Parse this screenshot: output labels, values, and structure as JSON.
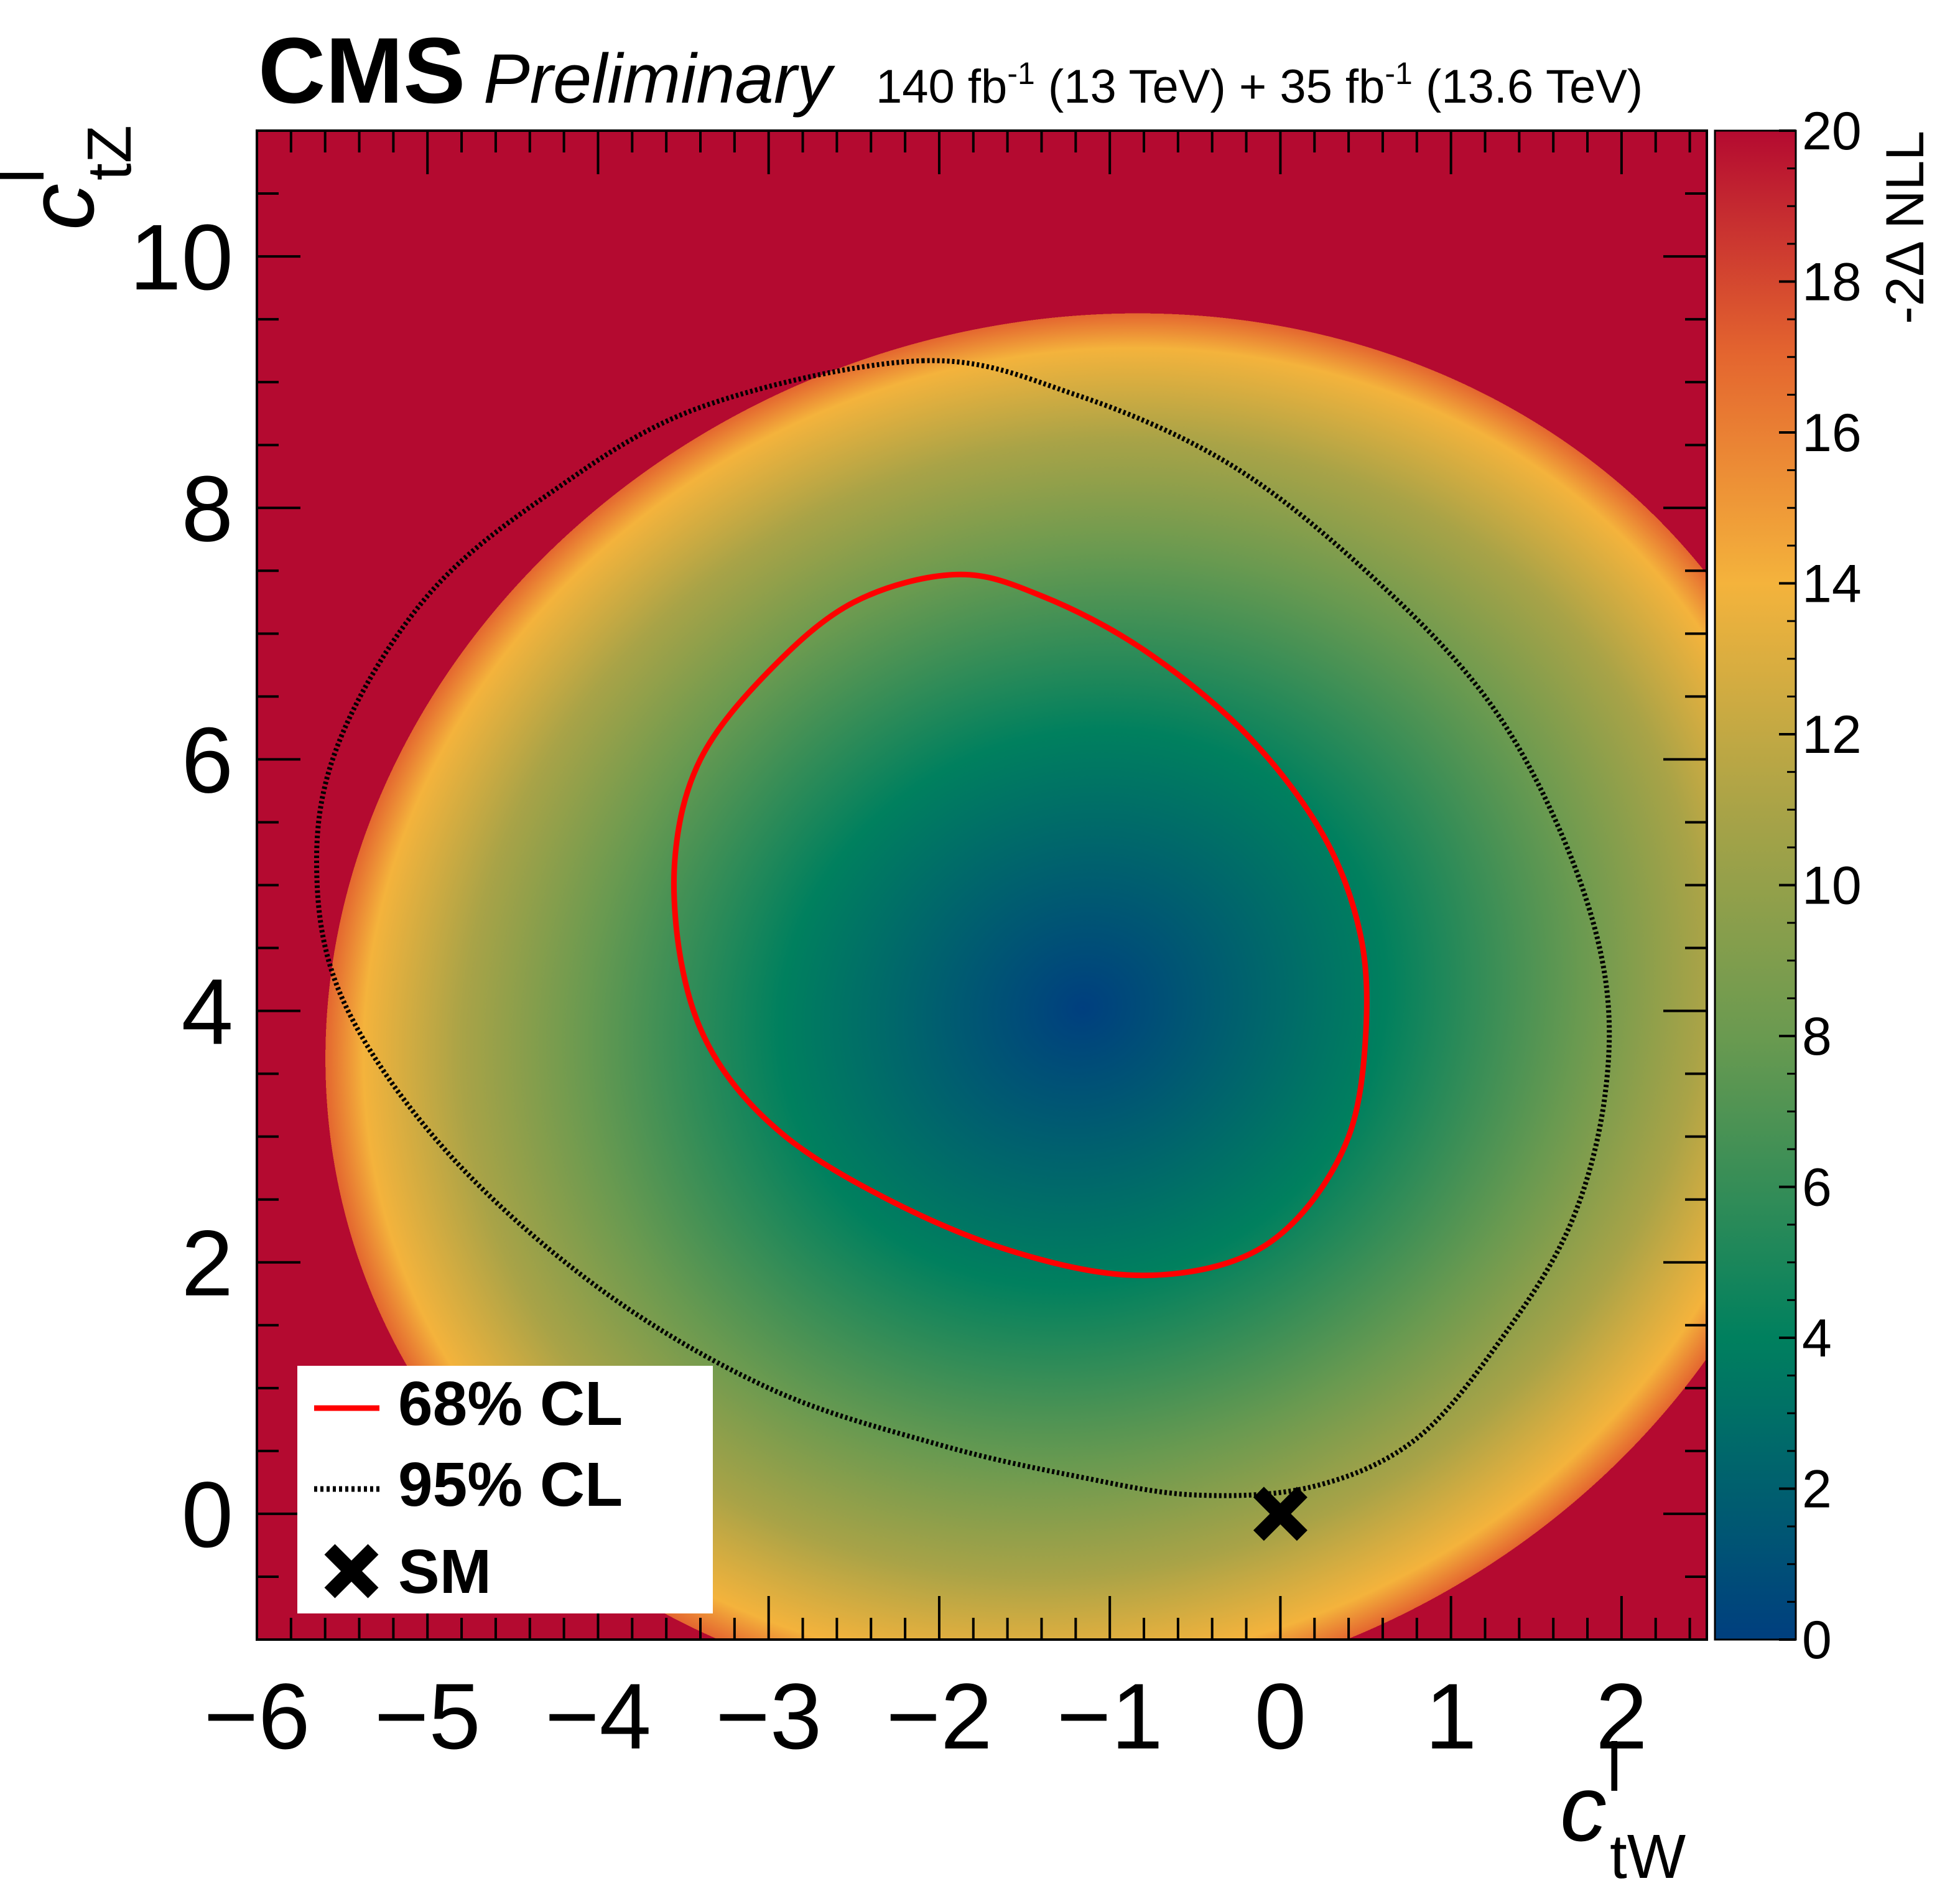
{
  "header": {
    "experiment": "CMS",
    "status": "Preliminary",
    "lumi_label_a": "140 fb",
    "lumi_exp_a": "-1",
    "lumi_label_b": " (13 TeV) + 35 fb",
    "lumi_exp_b": "-1",
    "lumi_label_c": " (13.6 TeV)"
  },
  "chart_data": {
    "type": "heatmap",
    "xlabel": {
      "base": "c",
      "sup": "l",
      "sub": "tW"
    },
    "ylabel": {
      "base": "c",
      "sup": "l",
      "sub": "tZ"
    },
    "xlim": [
      -6.0,
      2.5
    ],
    "ylim": [
      -1.0,
      11.0
    ],
    "x_ticks": [
      "−6",
      "−5",
      "−4",
      "−3",
      "−2",
      "−1",
      "0",
      "1",
      "2"
    ],
    "x_tick_values": [
      -6,
      -5,
      -4,
      -3,
      -2,
      -1,
      0,
      1,
      2
    ],
    "y_ticks": [
      "0",
      "2",
      "4",
      "6",
      "8",
      "10"
    ],
    "y_tick_values": [
      0,
      2,
      4,
      6,
      8,
      10
    ],
    "colorbar": {
      "label": "-2Δ NLL",
      "range": [
        0,
        20
      ],
      "ticks": [
        "0",
        "2",
        "4",
        "6",
        "8",
        "10",
        "12",
        "14",
        "16",
        "18",
        "20"
      ],
      "tick_values": [
        0,
        2,
        4,
        6,
        8,
        10,
        12,
        14,
        16,
        18,
        20
      ],
      "colors": [
        "#003f7f",
        "#00805e",
        "#6a9a50",
        "#a9a347",
        "#f4b33c",
        "#e4662f",
        "#b40a30"
      ]
    },
    "best_fit": [
      -1.2,
      4.7
    ],
    "contours": [
      {
        "name": "68% CL",
        "color": "#ff0000",
        "style": "solid",
        "points": [
          [
            -1.9,
            7.47
          ],
          [
            -1.4,
            7.3
          ],
          [
            -0.8,
            6.87
          ],
          [
            -0.2,
            6.2
          ],
          [
            0.25,
            5.4
          ],
          [
            0.47,
            4.6
          ],
          [
            0.5,
            3.8
          ],
          [
            0.4,
            3.0
          ],
          [
            0.1,
            2.35
          ],
          [
            -0.3,
            2.0
          ],
          [
            -0.9,
            1.9
          ],
          [
            -1.6,
            2.1
          ],
          [
            -2.3,
            2.5
          ],
          [
            -2.9,
            3.0
          ],
          [
            -3.3,
            3.6
          ],
          [
            -3.5,
            4.3
          ],
          [
            -3.55,
            5.2
          ],
          [
            -3.4,
            6.0
          ],
          [
            -3.0,
            6.7
          ],
          [
            -2.5,
            7.25
          ],
          [
            -1.9,
            7.47
          ]
        ]
      },
      {
        "name": "95% CL",
        "color": "#000000",
        "style": "dotted",
        "points": [
          [
            -2.1,
            9.17
          ],
          [
            -1.2,
            8.9
          ],
          [
            -0.3,
            8.35
          ],
          [
            0.5,
            7.5
          ],
          [
            1.2,
            6.5
          ],
          [
            1.65,
            5.4
          ],
          [
            1.9,
            4.3
          ],
          [
            1.9,
            3.3
          ],
          [
            1.7,
            2.3
          ],
          [
            1.3,
            1.4
          ],
          [
            0.8,
            0.6
          ],
          [
            0.2,
            0.22
          ],
          [
            -0.5,
            0.15
          ],
          [
            -1.2,
            0.3
          ],
          [
            -2.0,
            0.55
          ],
          [
            -3.0,
            1.0
          ],
          [
            -4.0,
            1.8
          ],
          [
            -4.9,
            2.9
          ],
          [
            -5.5,
            4.1
          ],
          [
            -5.65,
            5.2
          ],
          [
            -5.5,
            6.2
          ],
          [
            -5.0,
            7.3
          ],
          [
            -4.3,
            8.1
          ],
          [
            -3.4,
            8.8
          ],
          [
            -2.1,
            9.17
          ]
        ]
      }
    ],
    "sm_point": {
      "name": "SM",
      "x": 0.0,
      "y": 0.0
    },
    "legend": {
      "placement": "bottom-left",
      "entries": [
        {
          "label": "68% CL",
          "kind": "solid-line",
          "color": "#ff0000"
        },
        {
          "label": "95% CL",
          "kind": "dotted-line",
          "color": "#000000"
        },
        {
          "label": "SM",
          "kind": "cross-marker",
          "color": "#000000"
        }
      ]
    }
  }
}
